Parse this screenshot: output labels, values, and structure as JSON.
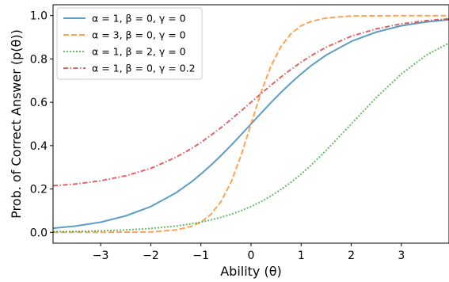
{
  "chart_data": {
    "type": "line",
    "xlabel": "Ability (θ)",
    "ylabel": "Prob. of Correct Answer (p(θ))",
    "xlim": [
      -3.95,
      3.95
    ],
    "ylim": [
      -0.05,
      1.05
    ],
    "xticks": [
      -3,
      -2,
      -1,
      0,
      1,
      2,
      3
    ],
    "xtick_labels": [
      "−3",
      "−2",
      "−1",
      "0",
      "1",
      "2",
      "3"
    ],
    "yticks": [
      0.0,
      0.2,
      0.4,
      0.6,
      0.8,
      1.0
    ],
    "ytick_labels": [
      "0.0",
      "0.2",
      "0.4",
      "0.6",
      "0.8",
      "1.0"
    ],
    "grid": false,
    "legend_position": "top-left",
    "x": [
      -3.95,
      -3.5,
      -3,
      -2.5,
      -2,
      -1.5,
      -1.2,
      -1,
      -0.8,
      -0.6,
      -0.4,
      -0.2,
      0,
      0.2,
      0.4,
      0.6,
      0.8,
      1,
      1.2,
      1.5,
      2,
      2.5,
      3,
      3.5,
      3.95
    ],
    "series": [
      {
        "name": "α = 1, β = 0, γ = 0",
        "color": "#1f77b4",
        "dash": "solid",
        "values": [
          0.019,
          0.029,
          0.047,
          0.076,
          0.119,
          0.182,
          0.231,
          0.269,
          0.31,
          0.354,
          0.401,
          0.45,
          0.5,
          0.55,
          0.599,
          0.646,
          0.69,
          0.731,
          0.769,
          0.818,
          0.881,
          0.924,
          0.953,
          0.971,
          0.981
        ]
      },
      {
        "name": "α = 3, β = 0, γ = 0",
        "color": "#ff7f0e",
        "dash": "dashed",
        "values": [
          0.0,
          0.0,
          0.0,
          0.001,
          0.002,
          0.011,
          0.027,
          0.047,
          0.083,
          0.142,
          0.231,
          0.354,
          0.5,
          0.646,
          0.769,
          0.858,
          0.917,
          0.953,
          0.973,
          0.989,
          0.998,
          0.999,
          1.0,
          1.0,
          1.0
        ]
      },
      {
        "name": "α = 1, β = 2, γ = 0",
        "color": "#2ca02c",
        "dash": "dotted",
        "values": [
          0.003,
          0.004,
          0.007,
          0.011,
          0.018,
          0.029,
          0.039,
          0.047,
          0.057,
          0.069,
          0.083,
          0.1,
          0.119,
          0.142,
          0.168,
          0.198,
          0.231,
          0.269,
          0.31,
          0.378,
          0.5,
          0.622,
          0.731,
          0.818,
          0.873
        ]
      },
      {
        "name": "α = 1, β = 0, γ = 0.2",
        "color": "#d62728",
        "dash": "dashdot",
        "values": [
          0.215,
          0.223,
          0.238,
          0.261,
          0.295,
          0.346,
          0.385,
          0.415,
          0.448,
          0.483,
          0.521,
          0.56,
          0.6,
          0.64,
          0.679,
          0.717,
          0.752,
          0.785,
          0.815,
          0.854,
          0.905,
          0.939,
          0.962,
          0.977,
          0.985
        ]
      }
    ]
  }
}
